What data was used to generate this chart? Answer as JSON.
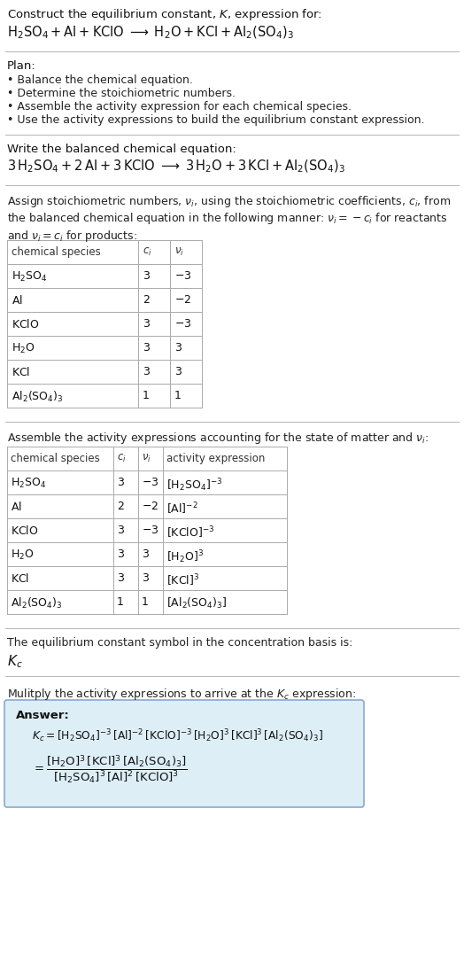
{
  "bg_color": "#ffffff",
  "answer_bg": "#ddeef6",
  "answer_border": "#88aacc",
  "title_line1": "Construct the equilibrium constant, $K$, expression for:",
  "title_line2": "$\\mathrm{H_2SO_4 + Al + KClO \\;\\longrightarrow\\; H_2O + KCl + Al_2(SO_4)_3}$",
  "plan_header": "Plan:",
  "plan_items": [
    "• Balance the chemical equation.",
    "• Determine the stoichiometric numbers.",
    "• Assemble the activity expression for each chemical species.",
    "• Use the activity expressions to build the equilibrium constant expression."
  ],
  "balanced_header": "Write the balanced chemical equation:",
  "balanced_eq": "$\\mathrm{3\\,H_2SO_4 + 2\\,Al + 3\\,KClO \\;\\longrightarrow\\; 3\\,H_2O + 3\\,KCl + Al_2(SO_4)_3}$",
  "stoich_intro": "Assign stoichiometric numbers, $\\nu_i$, using the stoichiometric coefficients, $c_i$, from\nthe balanced chemical equation in the following manner: $\\nu_i = -c_i$ for reactants\nand $\\nu_i = c_i$ for products:",
  "table1_cols": [
    "chemical species",
    "$c_i$",
    "$\\nu_i$"
  ],
  "table1_data": [
    [
      "$\\mathrm{H_2SO_4}$",
      "3",
      "$-3$"
    ],
    [
      "$\\mathrm{Al}$",
      "2",
      "$-2$"
    ],
    [
      "$\\mathrm{KClO}$",
      "3",
      "$-3$"
    ],
    [
      "$\\mathrm{H_2O}$",
      "3",
      "3"
    ],
    [
      "$\\mathrm{KCl}$",
      "3",
      "3"
    ],
    [
      "$\\mathrm{Al_2(SO_4)_3}$",
      "1",
      "1"
    ]
  ],
  "activity_header": "Assemble the activity expressions accounting for the state of matter and $\\nu_i$:",
  "table2_cols": [
    "chemical species",
    "$c_i$",
    "$\\nu_i$",
    "activity expression"
  ],
  "table2_data": [
    [
      "$\\mathrm{H_2SO_4}$",
      "3",
      "$-3$",
      "$[\\mathrm{H_2SO_4}]^{-3}$"
    ],
    [
      "$\\mathrm{Al}$",
      "2",
      "$-2$",
      "$[\\mathrm{Al}]^{-2}$"
    ],
    [
      "$\\mathrm{KClO}$",
      "3",
      "$-3$",
      "$[\\mathrm{KClO}]^{-3}$"
    ],
    [
      "$\\mathrm{H_2O}$",
      "3",
      "3",
      "$[\\mathrm{H_2O}]^{3}$"
    ],
    [
      "$\\mathrm{KCl}$",
      "3",
      "3",
      "$[\\mathrm{KCl}]^{3}$"
    ],
    [
      "$\\mathrm{Al_2(SO_4)_3}$",
      "1",
      "1",
      "$[\\mathrm{Al_2(SO_4)_3}]$"
    ]
  ],
  "kc_header": "The equilibrium constant symbol in the concentration basis is:",
  "kc_symbol": "$K_c$",
  "multiply_header": "Mulitply the activity expressions to arrive at the $K_c$ expression:",
  "answer_label": "Answer:",
  "answer_line1": "$K_c = [\\mathrm{H_2SO_4}]^{-3}\\,[\\mathrm{Al}]^{-2}\\,[\\mathrm{KClO}]^{-3}\\,[\\mathrm{H_2O}]^{3}\\,[\\mathrm{KCl}]^{3}\\,[\\mathrm{Al_2(SO_4)_3}]$",
  "answer_eq_line1": "$K_c = [\\mathrm{H_2SO_4}]^{-3}\\,[\\mathrm{Al}]^{-2}\\,[\\mathrm{KClO}]^{-3}\\,[\\mathrm{H_2O}]^{3}\\,[\\mathrm{KCl}]^{3}\\,[\\mathrm{Al_2(SO_4)_3}]$",
  "answer_eq_line2": "$= \\dfrac{[\\mathrm{H_2O}]^{3}\\,[\\mathrm{KCl}]^{3}\\,[\\mathrm{Al_2(SO_4)_3}]}{[\\mathrm{H_2SO_4}]^{3}\\,[\\mathrm{Al}]^{2}\\,[\\mathrm{KClO}]^{3}}$"
}
